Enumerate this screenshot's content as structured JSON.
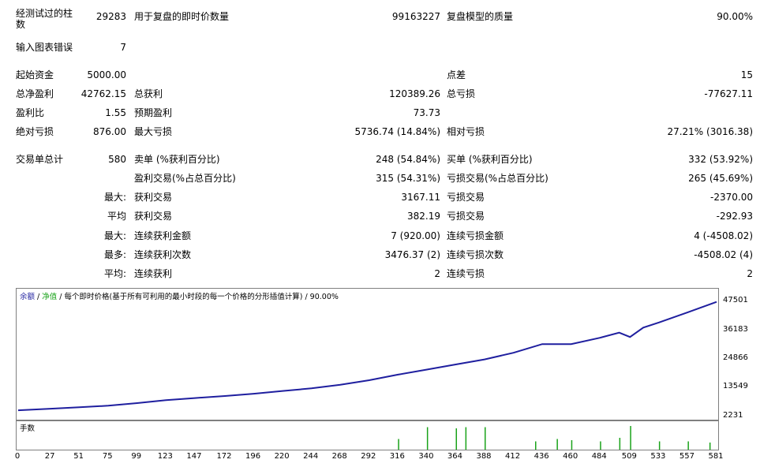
{
  "stats": {
    "bars_tested_label": "经测试过的柱\n数",
    "bars_tested_value": "29283",
    "ticks_modeled_label": "用于复盘的即时价数量",
    "ticks_modeled_value": "99163227",
    "modeling_quality_label": "复盘模型的质量",
    "modeling_quality_value": "90.00%",
    "mismatched_errors_label": "输入图表错误",
    "mismatched_errors_value": "7",
    "initial_deposit_label": "起始资金",
    "initial_deposit_value": "5000.00",
    "spread_label": "点差",
    "spread_value": "15",
    "net_profit_label": "总净盈利",
    "net_profit_value": "42762.15",
    "gross_profit_label": "总获利",
    "gross_profit_value": "120389.26",
    "gross_loss_label": "总亏损",
    "gross_loss_value": "-77627.11",
    "profit_factor_label": "盈利比",
    "profit_factor_value": "1.55",
    "expected_payoff_label": "预期盈利",
    "expected_payoff_value": "73.73",
    "abs_drawdown_label": "绝对亏损",
    "abs_drawdown_value": "876.00",
    "max_drawdown_label": "最大亏损",
    "max_drawdown_value": "5736.74 (14.84%)",
    "rel_drawdown_label": "相对亏损",
    "rel_drawdown_value": "27.21% (3016.38)",
    "total_trades_label": "交易单总计",
    "total_trades_value": "580",
    "short_label": "卖单 (%获利百分比)",
    "short_value": "248 (54.84%)",
    "long_label": "买单 (%获利百分比)",
    "long_value": "332 (53.92%)",
    "profit_trades_label": "盈利交易(%占总百分比)",
    "profit_trades_value": "315 (54.31%)",
    "loss_trades_label": "亏损交易(%占总百分比)",
    "loss_trades_value": "265 (45.69%)",
    "largest_prefix": "最大:",
    "largest_profit_label": "获利交易",
    "largest_profit_value": "3167.11",
    "largest_loss_label": "亏损交易",
    "largest_loss_value": "-2370.00",
    "average_prefix": "平均",
    "average_profit_label": "获利交易",
    "average_profit_value": "382.19",
    "average_loss_label": "亏损交易",
    "average_loss_value": "-292.93",
    "max_prefix": "最大:",
    "max_consec_wins_label": "连续获利金额",
    "max_consec_wins_value": "7 (920.00)",
    "max_consec_losses_label": "连续亏损金额",
    "max_consec_losses_value": "4 (-4508.02)",
    "maximal_prefix": "最多:",
    "maximal_consec_profit_label": "连续获利次数",
    "maximal_consec_profit_value": "3476.37 (2)",
    "maximal_consec_loss_label": "连续亏损次数",
    "maximal_consec_loss_value": "-4508.02 (4)",
    "avg_consec_prefix": "平均:",
    "avg_consec_wins_label": "连续获利",
    "avg_consec_wins_value": "2",
    "avg_consec_losses_label": "连续亏损",
    "avg_consec_losses_value": "2"
  },
  "chart": {
    "legend_balance": "余额",
    "legend_sep1": " / ",
    "legend_equity": "净值",
    "legend_rest": " / 每个即时价格(基于所有可利用的最小时段的每一个价格的分形插值计算) / 90.00%",
    "y_ticks": [
      "47501",
      "36183",
      "24866",
      "13549",
      "2231"
    ],
    "sub_title": "手数",
    "x_ticks": [
      "0",
      "27",
      "51",
      "75",
      "99",
      "123",
      "147",
      "172",
      "196",
      "220",
      "244",
      "268",
      "292",
      "316",
      "340",
      "364",
      "388",
      "412",
      "436",
      "460",
      "484",
      "509",
      "533",
      "557",
      "581"
    ],
    "colors": {
      "balance": "#1f1f9f",
      "equity": "#1aa31a",
      "lots": "#1aa31a",
      "border": "#7f7f7f"
    }
  },
  "chart_data": {
    "type": "line",
    "title": "",
    "ylim": [
      2231,
      47501
    ],
    "xlim": [
      0,
      581
    ],
    "y_ticks": [
      47501,
      36183,
      24866,
      13549,
      2231
    ],
    "x_ticks": [
      0,
      27,
      51,
      75,
      99,
      123,
      147,
      172,
      196,
      220,
      244,
      268,
      292,
      316,
      340,
      364,
      388,
      412,
      436,
      460,
      484,
      509,
      533,
      557,
      581
    ],
    "series": [
      {
        "name": "余额",
        "x": [
          0,
          27,
          51,
          75,
          99,
          123,
          147,
          172,
          196,
          220,
          244,
          268,
          292,
          316,
          340,
          364,
          388,
          412,
          436,
          460,
          484,
          500,
          509,
          520,
          533,
          557,
          581
        ],
        "values": [
          5000,
          5600,
          6200,
          6800,
          7800,
          9000,
          9800,
          10600,
          11500,
          12600,
          13600,
          15000,
          16800,
          19000,
          21000,
          23000,
          25000,
          27600,
          31000,
          31000,
          33500,
          35500,
          33800,
          37500,
          39500,
          43500,
          47600
        ]
      }
    ],
    "lots_panel": {
      "label": "手数",
      "bars": [
        {
          "x": 316,
          "v": 0.45
        },
        {
          "x": 340,
          "v": 0.95
        },
        {
          "x": 364,
          "v": 0.9
        },
        {
          "x": 372,
          "v": 0.95
        },
        {
          "x": 388,
          "v": 0.95
        },
        {
          "x": 430,
          "v": 0.35
        },
        {
          "x": 448,
          "v": 0.45
        },
        {
          "x": 460,
          "v": 0.4
        },
        {
          "x": 484,
          "v": 0.35
        },
        {
          "x": 500,
          "v": 0.5
        },
        {
          "x": 509,
          "v": 1.0
        },
        {
          "x": 533,
          "v": 0.35
        },
        {
          "x": 557,
          "v": 0.35
        },
        {
          "x": 575,
          "v": 0.3
        }
      ]
    }
  }
}
